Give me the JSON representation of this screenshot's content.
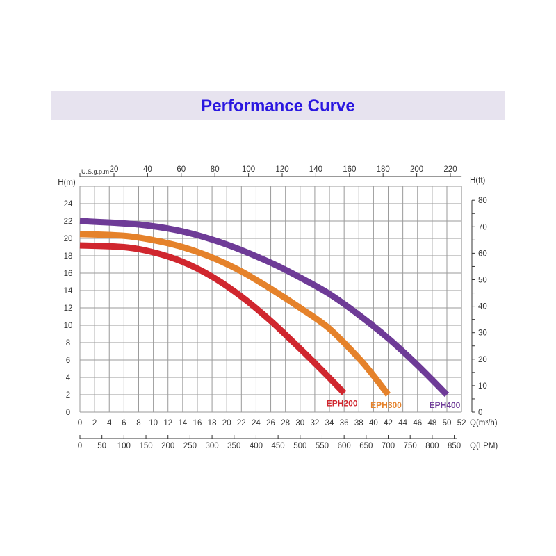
{
  "header": {
    "title": "Performance Curve"
  },
  "colors": {
    "EPH200": "#d0262e",
    "EPH300": "#e5822b",
    "EPH400": "#6e3b97",
    "grid": "#9a9a9a",
    "title": "#2a17e0",
    "band": "#e7e3ef"
  },
  "chart_data": {
    "type": "line",
    "title": "Performance Curve",
    "xlabel": "Q(m³/h)",
    "xlabel_secondary": "Q(LPM)",
    "xlabel_top": "U.S.g.p.m",
    "ylabel": "H(m)",
    "ylabel_right": "H(ft)",
    "xlim": [
      0,
      52
    ],
    "ylim": [
      0,
      26
    ],
    "grid": true,
    "x_ticks": [
      0,
      2,
      4,
      6,
      8,
      10,
      12,
      14,
      16,
      18,
      20,
      22,
      24,
      26,
      28,
      30,
      32,
      34,
      36,
      38,
      40,
      42,
      44,
      46,
      48,
      50,
      52
    ],
    "y_ticks": [
      0,
      2,
      4,
      6,
      8,
      10,
      12,
      14,
      16,
      18,
      20,
      22,
      24
    ],
    "lpm_ticks": [
      0,
      50,
      100,
      150,
      200,
      250,
      300,
      350,
      400,
      450,
      500,
      550,
      600,
      650,
      700,
      750,
      800,
      850
    ],
    "gpm_ticks": [
      20,
      40,
      60,
      80,
      100,
      120,
      140,
      160,
      180,
      200,
      220
    ],
    "ft_ticks": [
      0,
      10,
      20,
      30,
      40,
      50,
      60,
      70,
      80
    ],
    "series": [
      {
        "name": "EPH200",
        "x": [
          0,
          6,
          10,
          14,
          18,
          22,
          26,
          30,
          33,
          36
        ],
        "y": [
          19.2,
          19.0,
          18.4,
          17.3,
          15.6,
          13.3,
          10.5,
          7.3,
          4.8,
          2.2
        ]
      },
      {
        "name": "EPH300",
        "x": [
          0,
          6,
          10,
          14,
          18,
          22,
          26,
          30,
          34,
          38,
          40,
          42
        ],
        "y": [
          20.5,
          20.3,
          19.8,
          19.0,
          17.8,
          16.2,
          14.2,
          12.0,
          9.6,
          6.2,
          4.2,
          2.0
        ]
      },
      {
        "name": "EPH400",
        "x": [
          0,
          8,
          14,
          20,
          26,
          30,
          34,
          38,
          42,
          46,
          50
        ],
        "y": [
          22.0,
          21.6,
          20.8,
          19.3,
          17.2,
          15.5,
          13.6,
          11.2,
          8.5,
          5.4,
          2.0
        ]
      }
    ]
  }
}
